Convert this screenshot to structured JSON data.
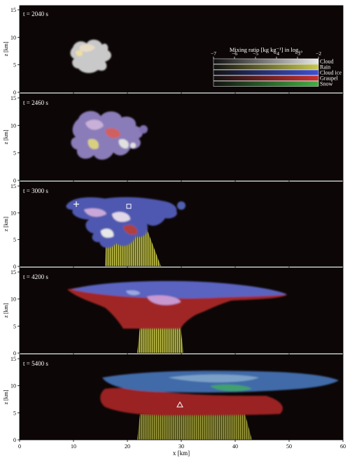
{
  "chart_data": {
    "type": "other",
    "panels": [
      {
        "time_label": "t = 2040 s"
      },
      {
        "time_label": "t = 2460 s"
      },
      {
        "time_label": "t = 3000 s"
      },
      {
        "time_label": "t = 4200 s"
      },
      {
        "time_label": "t = 5400 s"
      }
    ],
    "xlabel": "x [km]",
    "ylabel": "z [km]",
    "xlim": [
      0,
      60
    ],
    "ylim": [
      0,
      15
    ],
    "x_ticks": [
      0,
      10,
      20,
      30,
      40,
      50,
      60
    ],
    "y_ticks": [
      0,
      5,
      10,
      15
    ],
    "colorbar": {
      "title": "Mixing ratio [kg kg⁻¹] in log₁₀",
      "range": [
        -7,
        -2
      ],
      "ticks": [
        "−7",
        "−6",
        "−5",
        "−4",
        "−3",
        "−2"
      ],
      "species": [
        {
          "name": "Cloud",
          "color": "#e8e8e8"
        },
        {
          "name": "Rain",
          "color": "#c8c850"
        },
        {
          "name": "Cloud ice",
          "color": "#4050d0"
        },
        {
          "name": "Graupel",
          "color": "#c83030"
        },
        {
          "name": "Snow",
          "color": "#40b040"
        }
      ]
    },
    "markers": [
      {
        "panel": 2,
        "shape": "plus",
        "x": 10.5,
        "z": 11.5
      },
      {
        "panel": 2,
        "shape": "square",
        "x": 20.5,
        "z": 11
      },
      {
        "panel": 4,
        "shape": "triangle",
        "x": 29.5,
        "z": 6.5
      }
    ]
  }
}
